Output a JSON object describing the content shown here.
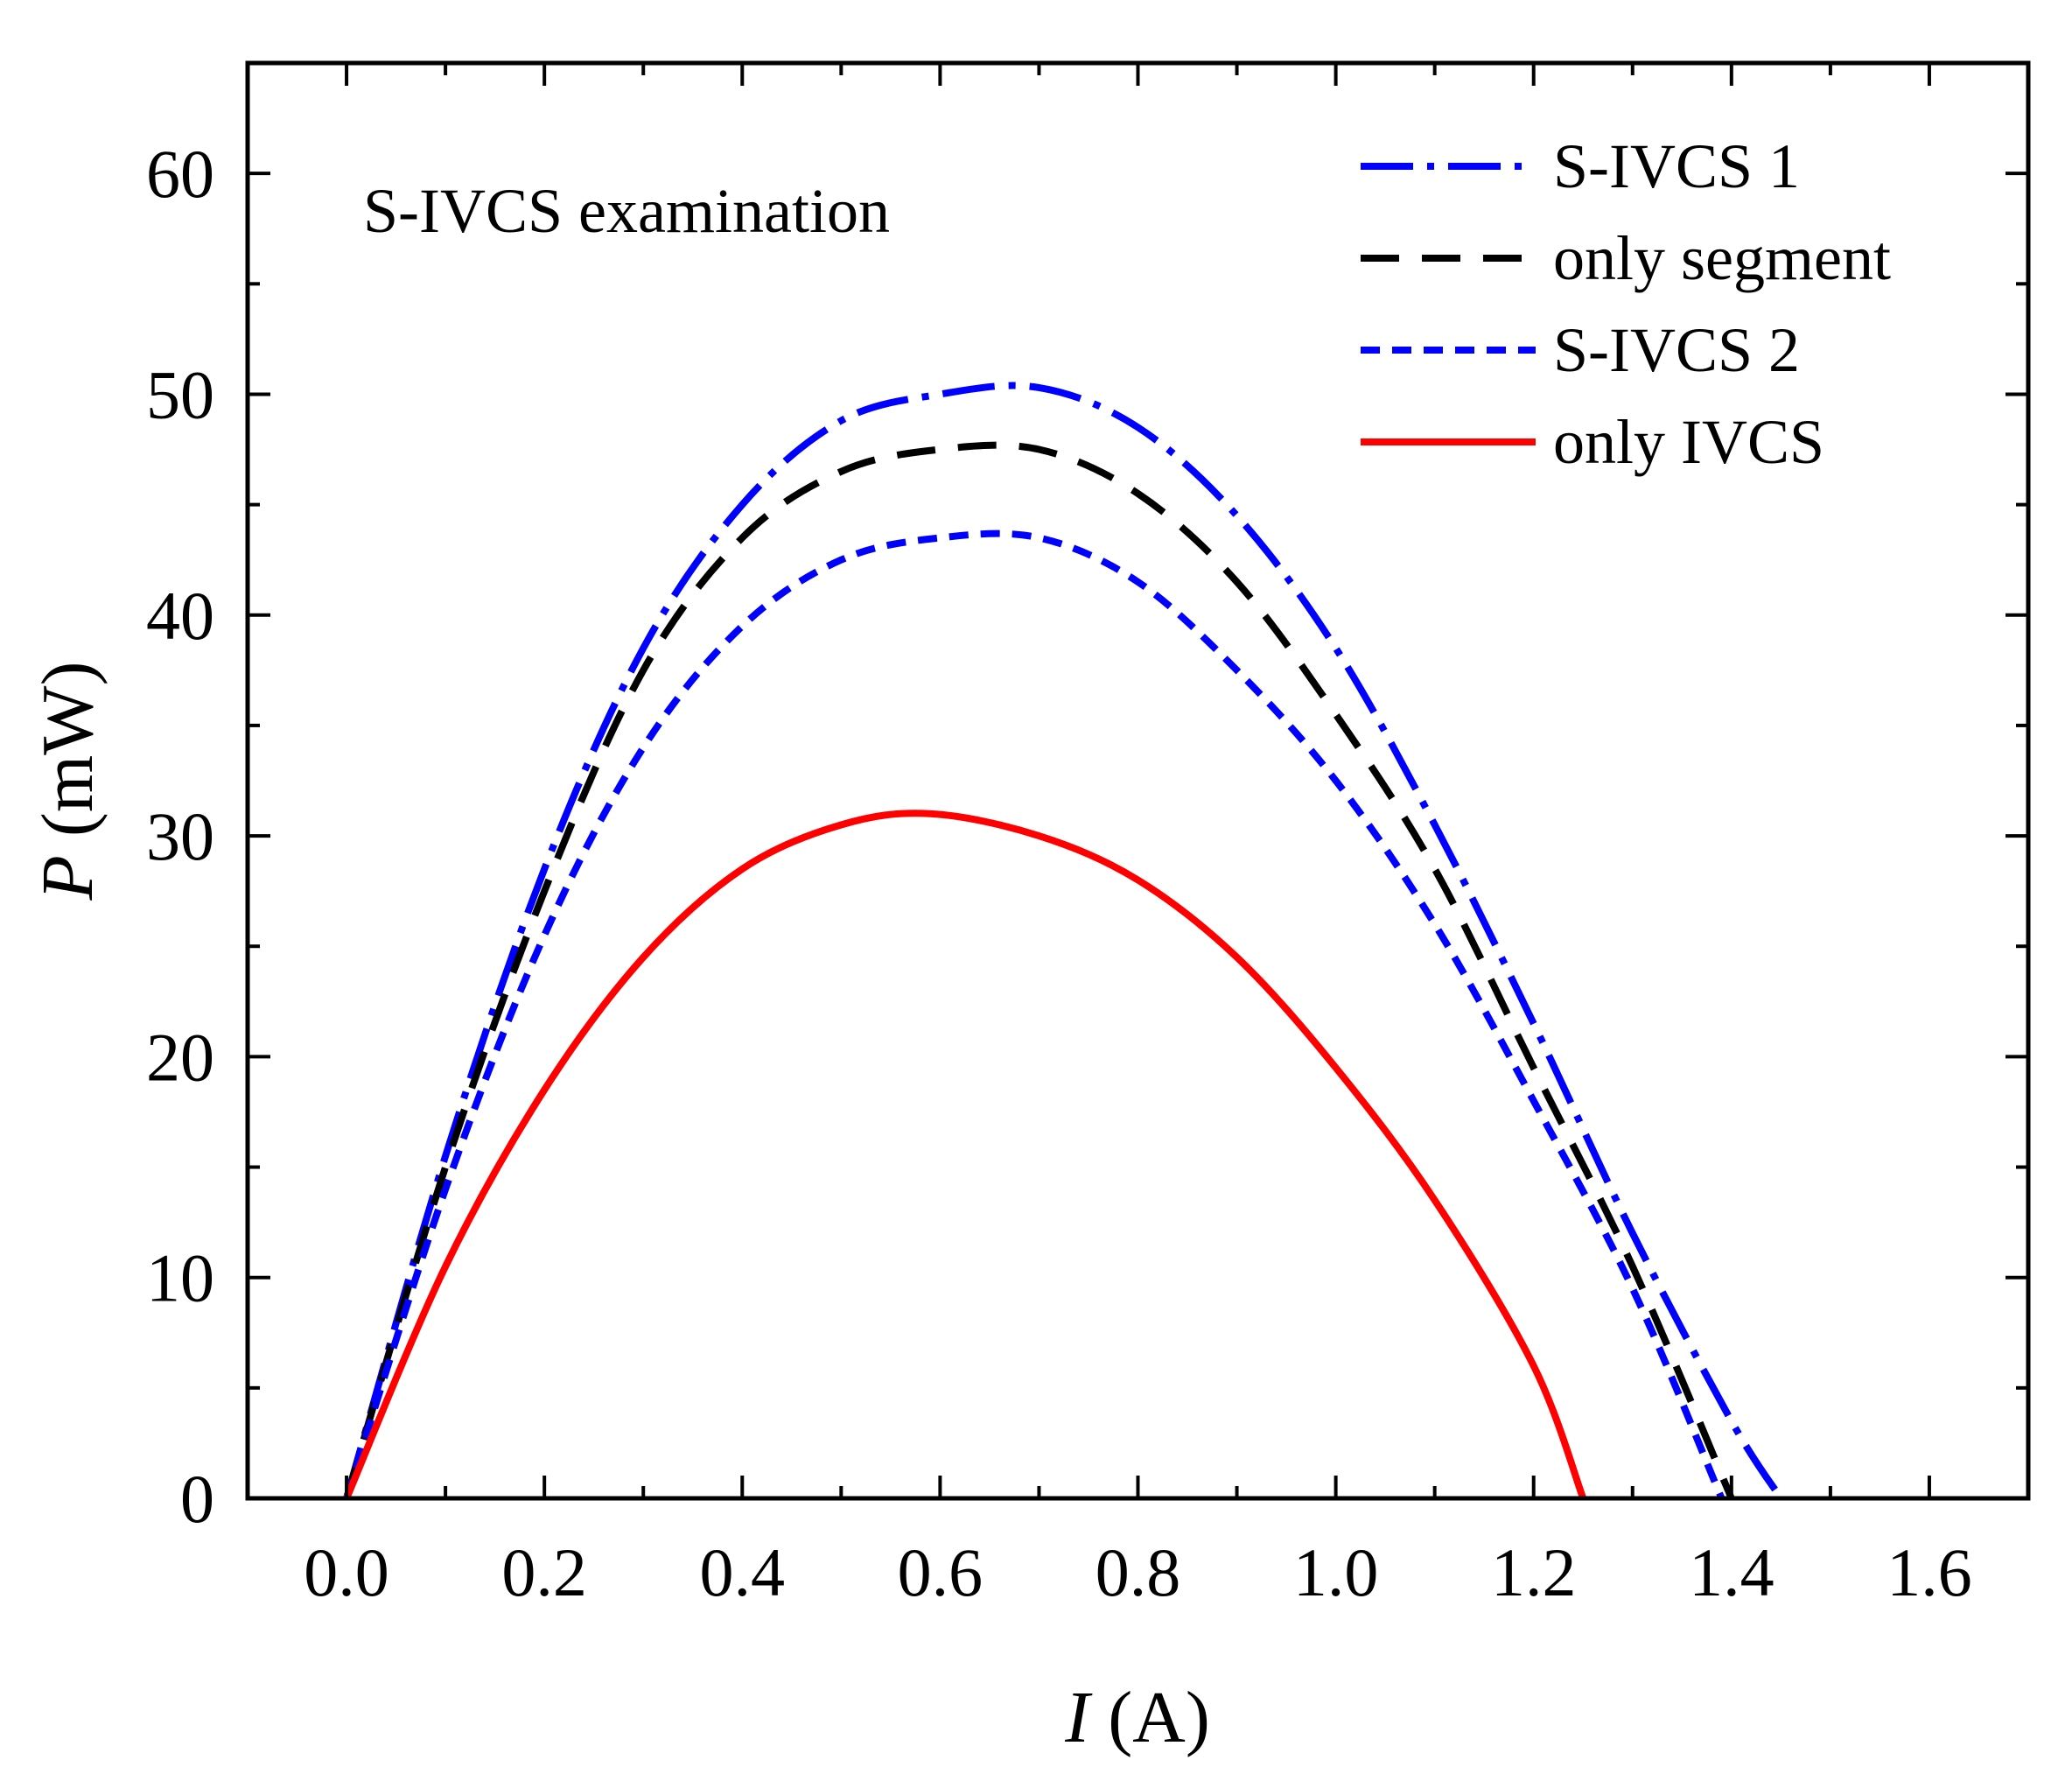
{
  "chart_data": {
    "type": "line",
    "annotation": "S-IVCS examination",
    "x_label_symbol": "I",
    "x_label_unit": " (A)",
    "y_label_symbol": "P",
    "y_label_unit": " (mW)",
    "xlim": [
      -0.1,
      1.7
    ],
    "ylim": [
      0,
      65
    ],
    "x_ticks": [
      "0.0",
      "0.2",
      "0.4",
      "0.6",
      "0.8",
      "1.0",
      "1.2",
      "1.4",
      "1.6"
    ],
    "x_tick_values": [
      0.0,
      0.2,
      0.4,
      0.6,
      0.8,
      1.0,
      1.2,
      1.4,
      1.6
    ],
    "y_ticks": [
      "0",
      "10",
      "20",
      "30",
      "40",
      "50",
      "60"
    ],
    "y_tick_values": [
      0,
      10,
      20,
      30,
      40,
      50,
      60
    ],
    "legend_position": "top-right",
    "series": [
      {
        "name": "S-IVCS 1",
        "color": "#0000ff",
        "style": "dash-dot",
        "x": [
          0.0,
          0.1,
          0.2,
          0.3,
          0.4,
          0.5,
          0.6,
          0.7,
          0.8,
          0.9,
          1.0,
          1.1,
          1.2,
          1.3,
          1.4,
          1.45
        ],
        "y": [
          0.0,
          15.5,
          28.5,
          38.5,
          45.0,
          48.8,
          50.0,
          50.3,
          48.5,
          44.5,
          38.5,
          30.5,
          21.5,
          12.0,
          3.5,
          0.0
        ]
      },
      {
        "name": "only segment",
        "color": "#000000",
        "style": "dashed",
        "x": [
          0.0,
          0.1,
          0.2,
          0.3,
          0.4,
          0.5,
          0.6,
          0.7,
          0.8,
          0.9,
          1.0,
          1.1,
          1.2,
          1.3,
          1.4
        ],
        "y": [
          0.0,
          15.0,
          27.5,
          37.5,
          43.5,
          46.5,
          47.5,
          47.5,
          45.5,
          41.5,
          35.5,
          28.5,
          19.5,
          10.5,
          0.0
        ]
      },
      {
        "name": "S-IVCS 2",
        "color": "#0000ff",
        "style": "dotted",
        "x": [
          0.0,
          0.1,
          0.2,
          0.3,
          0.4,
          0.5,
          0.6,
          0.7,
          0.8,
          0.9,
          1.0,
          1.1,
          1.2,
          1.3,
          1.39
        ],
        "y": [
          0.0,
          14.0,
          25.5,
          34.0,
          39.5,
          42.5,
          43.5,
          43.5,
          41.5,
          37.5,
          32.5,
          26.0,
          18.0,
          9.5,
          0.0
        ]
      },
      {
        "name": "only IVCS",
        "color": "#ff0000",
        "style": "solid",
        "x": [
          0.0,
          0.1,
          0.2,
          0.3,
          0.4,
          0.5,
          0.59,
          0.7,
          0.8,
          0.9,
          1.0,
          1.1,
          1.2,
          1.25
        ],
        "y": [
          0.0,
          10.5,
          18.5,
          24.5,
          28.5,
          30.5,
          31.0,
          30.0,
          28.0,
          24.5,
          19.5,
          13.5,
          6.0,
          0.0
        ]
      }
    ]
  }
}
